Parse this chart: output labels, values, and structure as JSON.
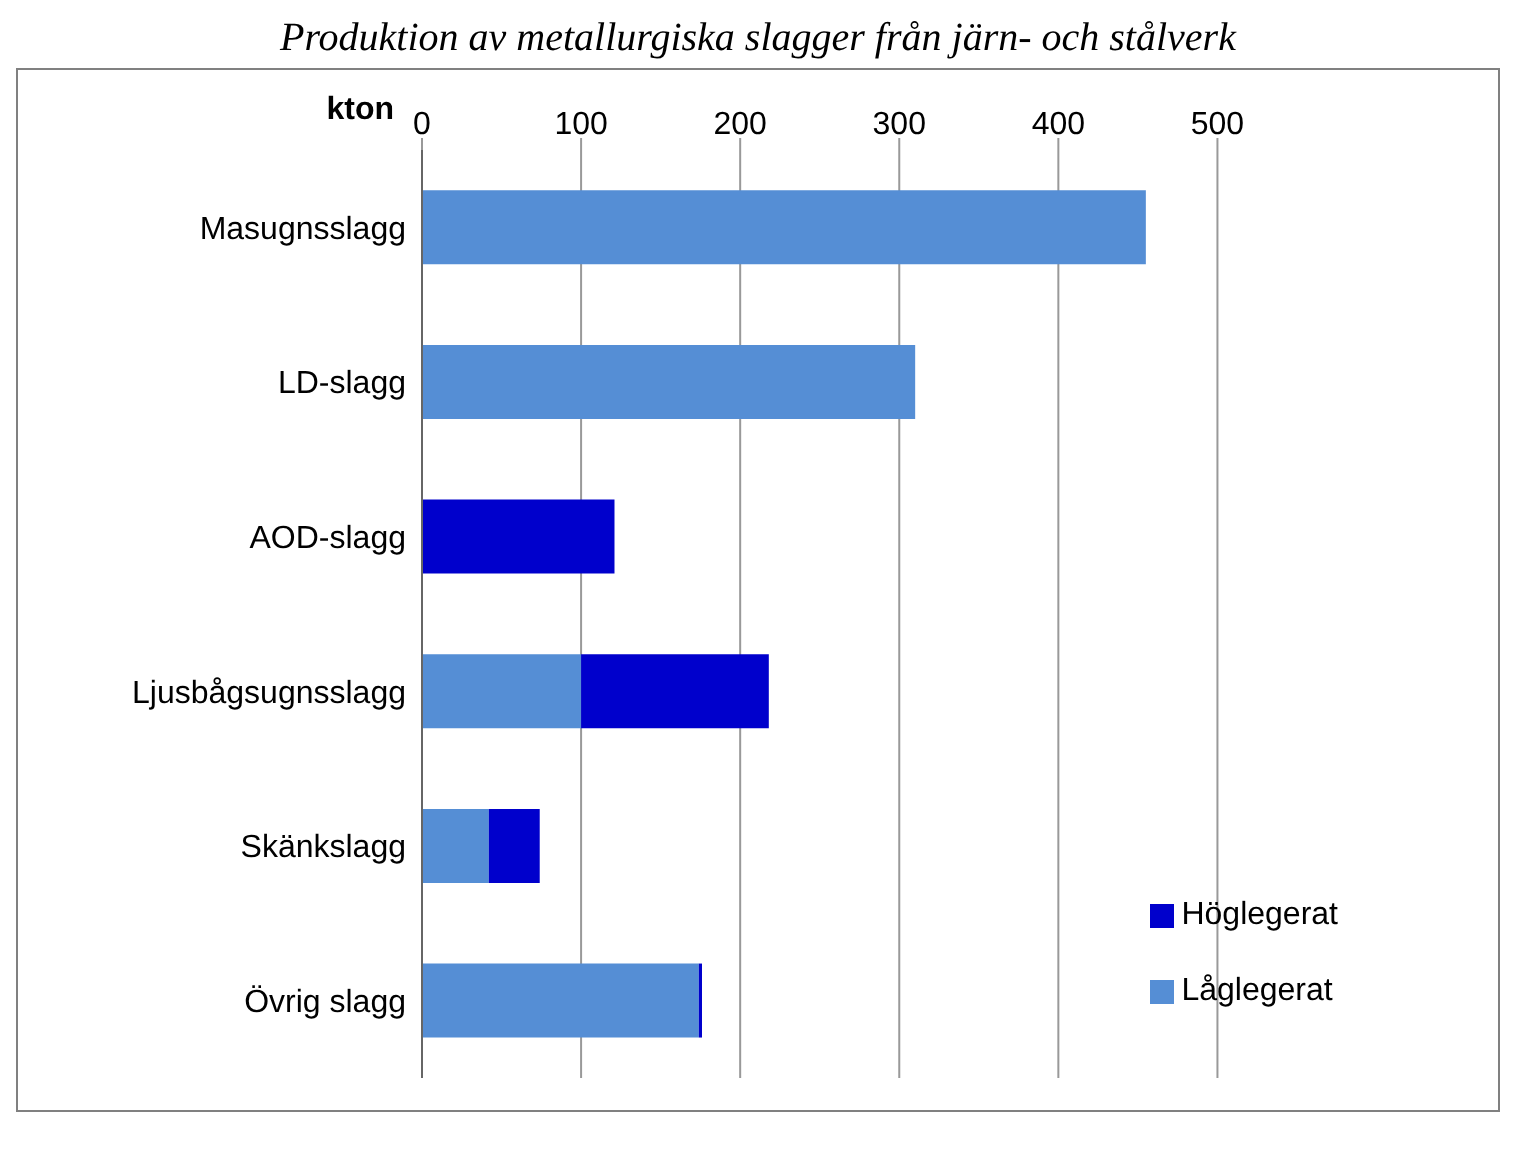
{
  "chart_data": {
    "type": "bar",
    "orientation": "horizontal",
    "stacked": true,
    "title": "Produktion av metallurgiska slagger från järn- och stålverk",
    "xlabel": "kton",
    "categories": [
      "Masugnsslagg",
      "LD-slagg",
      "AOD-slagg",
      "Ljusbågsugnsslagg",
      "Skänkslagg",
      "Övrig slagg"
    ],
    "series": [
      {
        "name": "Låglegerat",
        "color": "#558ed5",
        "values": [
          455,
          310,
          0,
          100,
          42,
          174
        ]
      },
      {
        "name": "Höglegerat",
        "color": "#0000cc",
        "values": [
          0,
          0,
          121,
          118,
          32,
          2
        ]
      }
    ],
    "xlim": [
      0,
      500
    ],
    "xticks": [
      0,
      100,
      200,
      300,
      400,
      500
    ],
    "grid": "x",
    "legend": "bottom right"
  }
}
